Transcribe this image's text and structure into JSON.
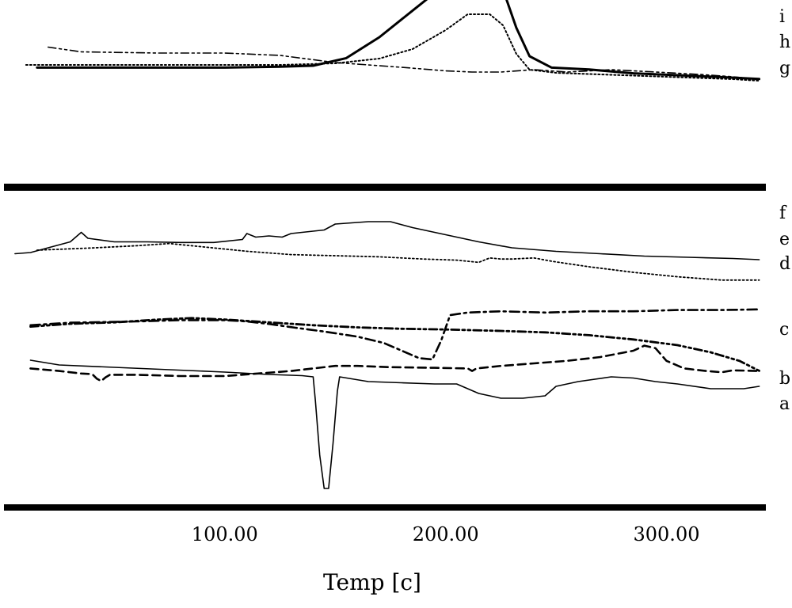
{
  "chart_data": {
    "type": "line",
    "xlabel": "Temp [c]",
    "xlim": [
      0,
      345
    ],
    "xticks": [
      {
        "value": 100,
        "label": "100.00"
      },
      {
        "value": 200,
        "label": "200.00"
      },
      {
        "value": 300,
        "label": "300.00"
      }
    ],
    "grid": false,
    "y_axis_shown": false,
    "panels": [
      {
        "name": "upper",
        "series": [
          {
            "name": "i",
            "style": "dashdotdot",
            "width": 1.6,
            "points": [
              [
                20,
                -3.5
              ],
              [
                35,
                -1.5
              ],
              [
                70,
                -1
              ],
              [
                100,
                -1
              ],
              [
                125,
                0
              ],
              [
                150,
                3
              ],
              [
                180,
                5
              ],
              [
                200,
                6.5
              ],
              [
                212,
                7
              ],
              [
                225,
                7
              ],
              [
                240,
                6
              ],
              [
                255,
                7
              ],
              [
                275,
                6
              ],
              [
                295,
                7
              ],
              [
                315,
                8
              ],
              [
                330,
                9
              ],
              [
                342,
                10
              ]
            ]
          },
          {
            "name": "h",
            "style": "dotted",
            "width": 2.0,
            "points": [
              [
                10,
                -5
              ],
              [
                40,
                -5
              ],
              [
                70,
                -5
              ],
              [
                100,
                -5
              ],
              [
                125,
                -5
              ],
              [
                150,
                -6
              ],
              [
                170,
                -9
              ],
              [
                185,
                -15
              ],
              [
                200,
                -27
              ],
              [
                210,
                -37
              ],
              [
                220,
                -37
              ],
              [
                226,
                -30
              ],
              [
                232,
                -12
              ],
              [
                238,
                -2
              ],
              [
                250,
                0
              ],
              [
                270,
                1
              ],
              [
                290,
                2
              ],
              [
                310,
                3
              ],
              [
                330,
                4
              ],
              [
                342,
                5
              ]
            ]
          },
          {
            "name": "g",
            "style": "solid",
            "width": 3.0,
            "points": [
              [
                15,
                -4
              ],
              [
                40,
                -4
              ],
              [
                70,
                -4
              ],
              [
                100,
                -4
              ],
              [
                125,
                -4.5
              ],
              [
                140,
                -5
              ],
              [
                155,
                -9
              ],
              [
                170,
                -20
              ],
              [
                185,
                -34
              ],
              [
                198,
                -46
              ],
              [
                210,
                -52
              ],
              [
                220,
                -52
              ],
              [
                226,
                -45
              ],
              [
                232,
                -25
              ],
              [
                238,
                -10
              ],
              [
                248,
                -4
              ],
              [
                265,
                -3
              ],
              [
                285,
                -1
              ],
              [
                305,
                0
              ],
              [
                325,
                1
              ],
              [
                342,
                2
              ]
            ]
          }
        ]
      },
      {
        "name": "lower",
        "series": [
          {
            "name": "f",
            "style": "solid",
            "width": 1.6,
            "points": [
              [
                5,
                15
              ],
              [
                12,
                14
              ],
              [
                20,
                10
              ],
              [
                30,
                5
              ],
              [
                35,
                -3
              ],
              [
                38,
                2
              ],
              [
                50,
                5
              ],
              [
                65,
                5
              ],
              [
                80,
                5.5
              ],
              [
                95,
                5.5
              ],
              [
                108,
                3
              ],
              [
                110,
                -2
              ],
              [
                114,
                1
              ],
              [
                120,
                0
              ],
              [
                126,
                1
              ],
              [
                130,
                -2
              ],
              [
                135,
                -3
              ],
              [
                145,
                -5
              ],
              [
                150,
                -10
              ],
              [
                165,
                -12
              ],
              [
                175,
                -12
              ],
              [
                185,
                -7
              ],
              [
                200,
                -1
              ],
              [
                215,
                5
              ],
              [
                230,
                10
              ],
              [
                250,
                13
              ],
              [
                270,
                15
              ],
              [
                290,
                17
              ],
              [
                310,
                18
              ],
              [
                330,
                19
              ],
              [
                342,
                20
              ]
            ]
          },
          {
            "name": "e",
            "style": "dotted",
            "width": 1.8,
            "points": [
              [
                15,
                -10
              ],
              [
                40,
                -12
              ],
              [
                60,
                -14
              ],
              [
                75,
                -16
              ],
              [
                90,
                -13
              ],
              [
                110,
                -9
              ],
              [
                130,
                -6
              ],
              [
                150,
                -5
              ],
              [
                170,
                -4
              ],
              [
                190,
                -2
              ],
              [
                205,
                -1
              ],
              [
                215,
                1
              ],
              [
                220,
                -3
              ],
              [
                225,
                -2
              ],
              [
                230,
                -2
              ],
              [
                240,
                -3
              ],
              [
                248,
                0
              ],
              [
                265,
                5
              ],
              [
                285,
                10
              ],
              [
                305,
                14
              ],
              [
                325,
                17
              ],
              [
                342,
                17
              ]
            ]
          },
          {
            "name": "d",
            "style": "dashdotdot",
            "width": 2.8,
            "points": [
              [
                12,
                7
              ],
              [
                30,
                5
              ],
              [
                50,
                4
              ],
              [
                70,
                2
              ],
              [
                85,
                1
              ],
              [
                100,
                2
              ],
              [
                120,
                4
              ],
              [
                140,
                6
              ],
              [
                160,
                7.5
              ],
              [
                180,
                8.5
              ],
              [
                200,
                9
              ],
              [
                225,
                10
              ],
              [
                245,
                11
              ],
              [
                265,
                13
              ],
              [
                285,
                16
              ],
              [
                305,
                20
              ],
              [
                320,
                25
              ],
              [
                333,
                31
              ],
              [
                342,
                38
              ]
            ]
          },
          {
            "name": "c",
            "style": "dashdot",
            "width": 2.6,
            "points": [
              [
                12,
                -17
              ],
              [
                30,
                -19
              ],
              [
                45,
                -19.5
              ],
              [
                60,
                -20
              ],
              [
                80,
                -21
              ],
              [
                100,
                -21
              ],
              [
                110,
                -20
              ],
              [
                120,
                -18
              ],
              [
                132,
                -15
              ],
              [
                145,
                -12
              ],
              [
                160,
                -8
              ],
              [
                172,
                -3
              ],
              [
                180,
                3
              ],
              [
                188,
                9
              ],
              [
                194,
                10
              ],
              [
                198,
                -5
              ],
              [
                202,
                -25
              ],
              [
                210,
                -27
              ],
              [
                225,
                -28
              ],
              [
                245,
                -27
              ],
              [
                265,
                -28
              ],
              [
                285,
                -28
              ],
              [
                305,
                -29
              ],
              [
                325,
                -29
              ],
              [
                342,
                -29.5
              ]
            ]
          },
          {
            "name": "b",
            "style": "dashed",
            "width": 2.6,
            "points": [
              [
                12,
                -6
              ],
              [
                25,
                -4
              ],
              [
                35,
                -2
              ],
              [
                40,
                -1.5
              ],
              [
                42,
                2
              ],
              [
                44,
                4
              ],
              [
                46,
                1
              ],
              [
                48,
                -1
              ],
              [
                60,
                -1
              ],
              [
                80,
                0
              ],
              [
                100,
                0
              ],
              [
                115,
                -2
              ],
              [
                130,
                -4
              ],
              [
                140,
                -6
              ],
              [
                150,
                -8
              ],
              [
                160,
                -8
              ],
              [
                175,
                -7
              ],
              [
                195,
                -6.5
              ],
              [
                210,
                -6
              ],
              [
                212,
                -4
              ],
              [
                214,
                -6
              ],
              [
                225,
                -8
              ],
              [
                240,
                -10
              ],
              [
                255,
                -12
              ],
              [
                270,
                -15
              ],
              [
                285,
                -20
              ],
              [
                290,
                -24
              ],
              [
                295,
                -22
              ],
              [
                300,
                -12
              ],
              [
                308,
                -6
              ],
              [
                318,
                -4
              ],
              [
                325,
                -3
              ],
              [
                330,
                -4.5
              ],
              [
                342,
                -4
              ]
            ]
          },
          {
            "name": "a",
            "style": "solid",
            "width": 1.6,
            "points": [
              [
                12,
                -5
              ],
              [
                25,
                -3
              ],
              [
                50,
                -2
              ],
              [
                75,
                -1
              ],
              [
                100,
                0
              ],
              [
                120,
                1
              ],
              [
                135,
                1.5
              ],
              [
                140,
                2
              ],
              [
                141,
                12
              ],
              [
                143,
                35
              ],
              [
                145,
                49
              ],
              [
                147,
                49
              ],
              [
                149,
                30
              ],
              [
                151,
                8
              ],
              [
                152,
                2
              ],
              [
                165,
                4
              ],
              [
                180,
                4.5
              ],
              [
                195,
                5
              ],
              [
                205,
                5
              ],
              [
                215,
                9
              ],
              [
                225,
                11
              ],
              [
                235,
                11
              ],
              [
                245,
                10
              ],
              [
                250,
                6
              ],
              [
                260,
                4
              ],
              [
                275,
                2
              ],
              [
                285,
                2.5
              ],
              [
                295,
                4
              ],
              [
                305,
                5
              ],
              [
                320,
                7
              ],
              [
                335,
                7
              ],
              [
                342,
                6
              ]
            ]
          }
        ]
      }
    ],
    "labels": [
      {
        "series": "i",
        "text": "i"
      },
      {
        "series": "h",
        "text": "h"
      },
      {
        "series": "g",
        "text": "g"
      },
      {
        "series": "f",
        "text": "f"
      },
      {
        "series": "e",
        "text": "e"
      },
      {
        "series": "d",
        "text": "d"
      },
      {
        "series": "c",
        "text": "c"
      },
      {
        "series": "b",
        "text": "b"
      },
      {
        "series": "a",
        "text": "a"
      }
    ]
  }
}
